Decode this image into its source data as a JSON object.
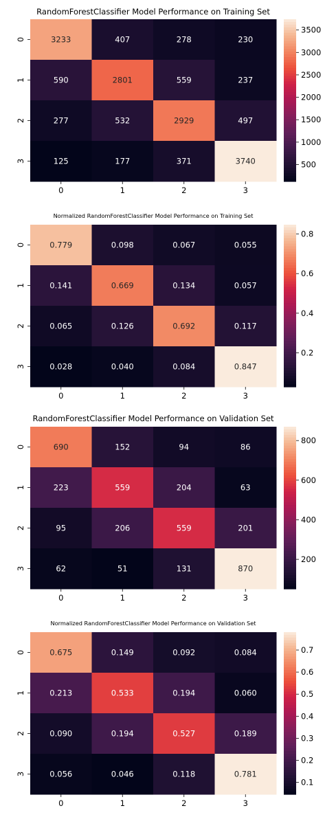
{
  "chart_data": [
    {
      "type": "heatmap",
      "title": "RandomForestClassifier Model Performance on Training Set",
      "x_labels": [
        "0",
        "1",
        "2",
        "3"
      ],
      "y_labels": [
        "0",
        "1",
        "2",
        "3"
      ],
      "annotations": [
        [
          "3233",
          "407",
          "278",
          "230"
        ],
        [
          "590",
          "2801",
          "559",
          "237"
        ],
        [
          "277",
          "532",
          "2929",
          "497"
        ],
        [
          "125",
          "177",
          "371",
          "3740"
        ]
      ],
      "values": [
        [
          3233,
          407,
          278,
          230
        ],
        [
          590,
          2801,
          559,
          237
        ],
        [
          277,
          532,
          2929,
          497
        ],
        [
          125,
          177,
          371,
          3740
        ]
      ],
      "color_range": [
        125,
        3740
      ],
      "colorbar_ticks": [
        500,
        1000,
        1500,
        2000,
        2500,
        3000,
        3500
      ],
      "colorbar_tick_labels": [
        "500",
        "1000",
        "1500",
        "2000",
        "2500",
        "3000",
        "3500"
      ],
      "colormap": "rocket"
    },
    {
      "type": "heatmap",
      "title": "Normalized RandomForestClassifier Model Performance on Training Set",
      "x_labels": [
        "0",
        "1",
        "2",
        "3"
      ],
      "y_labels": [
        "0",
        "1",
        "2",
        "3"
      ],
      "annotations": [
        [
          "0.779",
          "0.098",
          "0.067",
          "0.055"
        ],
        [
          "0.141",
          "0.669",
          "0.134",
          "0.057"
        ],
        [
          "0.065",
          "0.126",
          "0.692",
          "0.117"
        ],
        [
          "0.028",
          "0.040",
          "0.084",
          "0.847"
        ]
      ],
      "values": [
        [
          0.779,
          0.098,
          0.067,
          0.055
        ],
        [
          0.141,
          0.669,
          0.134,
          0.057
        ],
        [
          0.065,
          0.126,
          0.692,
          0.117
        ],
        [
          0.028,
          0.04,
          0.084,
          0.847
        ]
      ],
      "color_range": [
        0.028,
        0.847
      ],
      "colorbar_ticks": [
        0.2,
        0.4,
        0.6,
        0.8
      ],
      "colorbar_tick_labels": [
        "0.2",
        "0.4",
        "0.6",
        "0.8"
      ],
      "colormap": "rocket"
    },
    {
      "type": "heatmap",
      "title": "RandomForestClassifier Model Performance on Validation Set",
      "x_labels": [
        "0",
        "1",
        "2",
        "3"
      ],
      "y_labels": [
        "0",
        "1",
        "2",
        "3"
      ],
      "annotations": [
        [
          "690",
          "152",
          "94",
          "86"
        ],
        [
          "223",
          "559",
          "204",
          "63"
        ],
        [
          "95",
          "206",
          "559",
          "201"
        ],
        [
          "62",
          "51",
          "131",
          "870"
        ]
      ],
      "values": [
        [
          690,
          152,
          94,
          86
        ],
        [
          223,
          559,
          204,
          63
        ],
        [
          95,
          206,
          559,
          201
        ],
        [
          62,
          51,
          131,
          870
        ]
      ],
      "color_range": [
        51,
        870
      ],
      "colorbar_ticks": [
        200,
        400,
        600,
        800
      ],
      "colorbar_tick_labels": [
        "200",
        "400",
        "600",
        "800"
      ],
      "colormap": "rocket"
    },
    {
      "type": "heatmap",
      "title": "Normalized RandomForestClassifier Model Performance on Validation Set",
      "x_labels": [
        "0",
        "1",
        "2",
        "3"
      ],
      "y_labels": [
        "0",
        "1",
        "2",
        "3"
      ],
      "annotations": [
        [
          "0.675",
          "0.149",
          "0.092",
          "0.084"
        ],
        [
          "0.213",
          "0.533",
          "0.194",
          "0.060"
        ],
        [
          "0.090",
          "0.194",
          "0.527",
          "0.189"
        ],
        [
          "0.056",
          "0.046",
          "0.118",
          "0.781"
        ]
      ],
      "values": [
        [
          0.675,
          0.149,
          0.092,
          0.084
        ],
        [
          0.213,
          0.533,
          0.194,
          0.06
        ],
        [
          0.09,
          0.194,
          0.527,
          0.189
        ],
        [
          0.056,
          0.046,
          0.118,
          0.781
        ]
      ],
      "color_range": [
        0.046,
        0.781
      ],
      "colorbar_ticks": [
        0.1,
        0.2,
        0.3,
        0.4,
        0.5,
        0.6,
        0.7
      ],
      "colorbar_tick_labels": [
        "0.1",
        "0.2",
        "0.3",
        "0.4",
        "0.5",
        "0.6",
        "0.7"
      ],
      "colormap": "rocket"
    }
  ]
}
